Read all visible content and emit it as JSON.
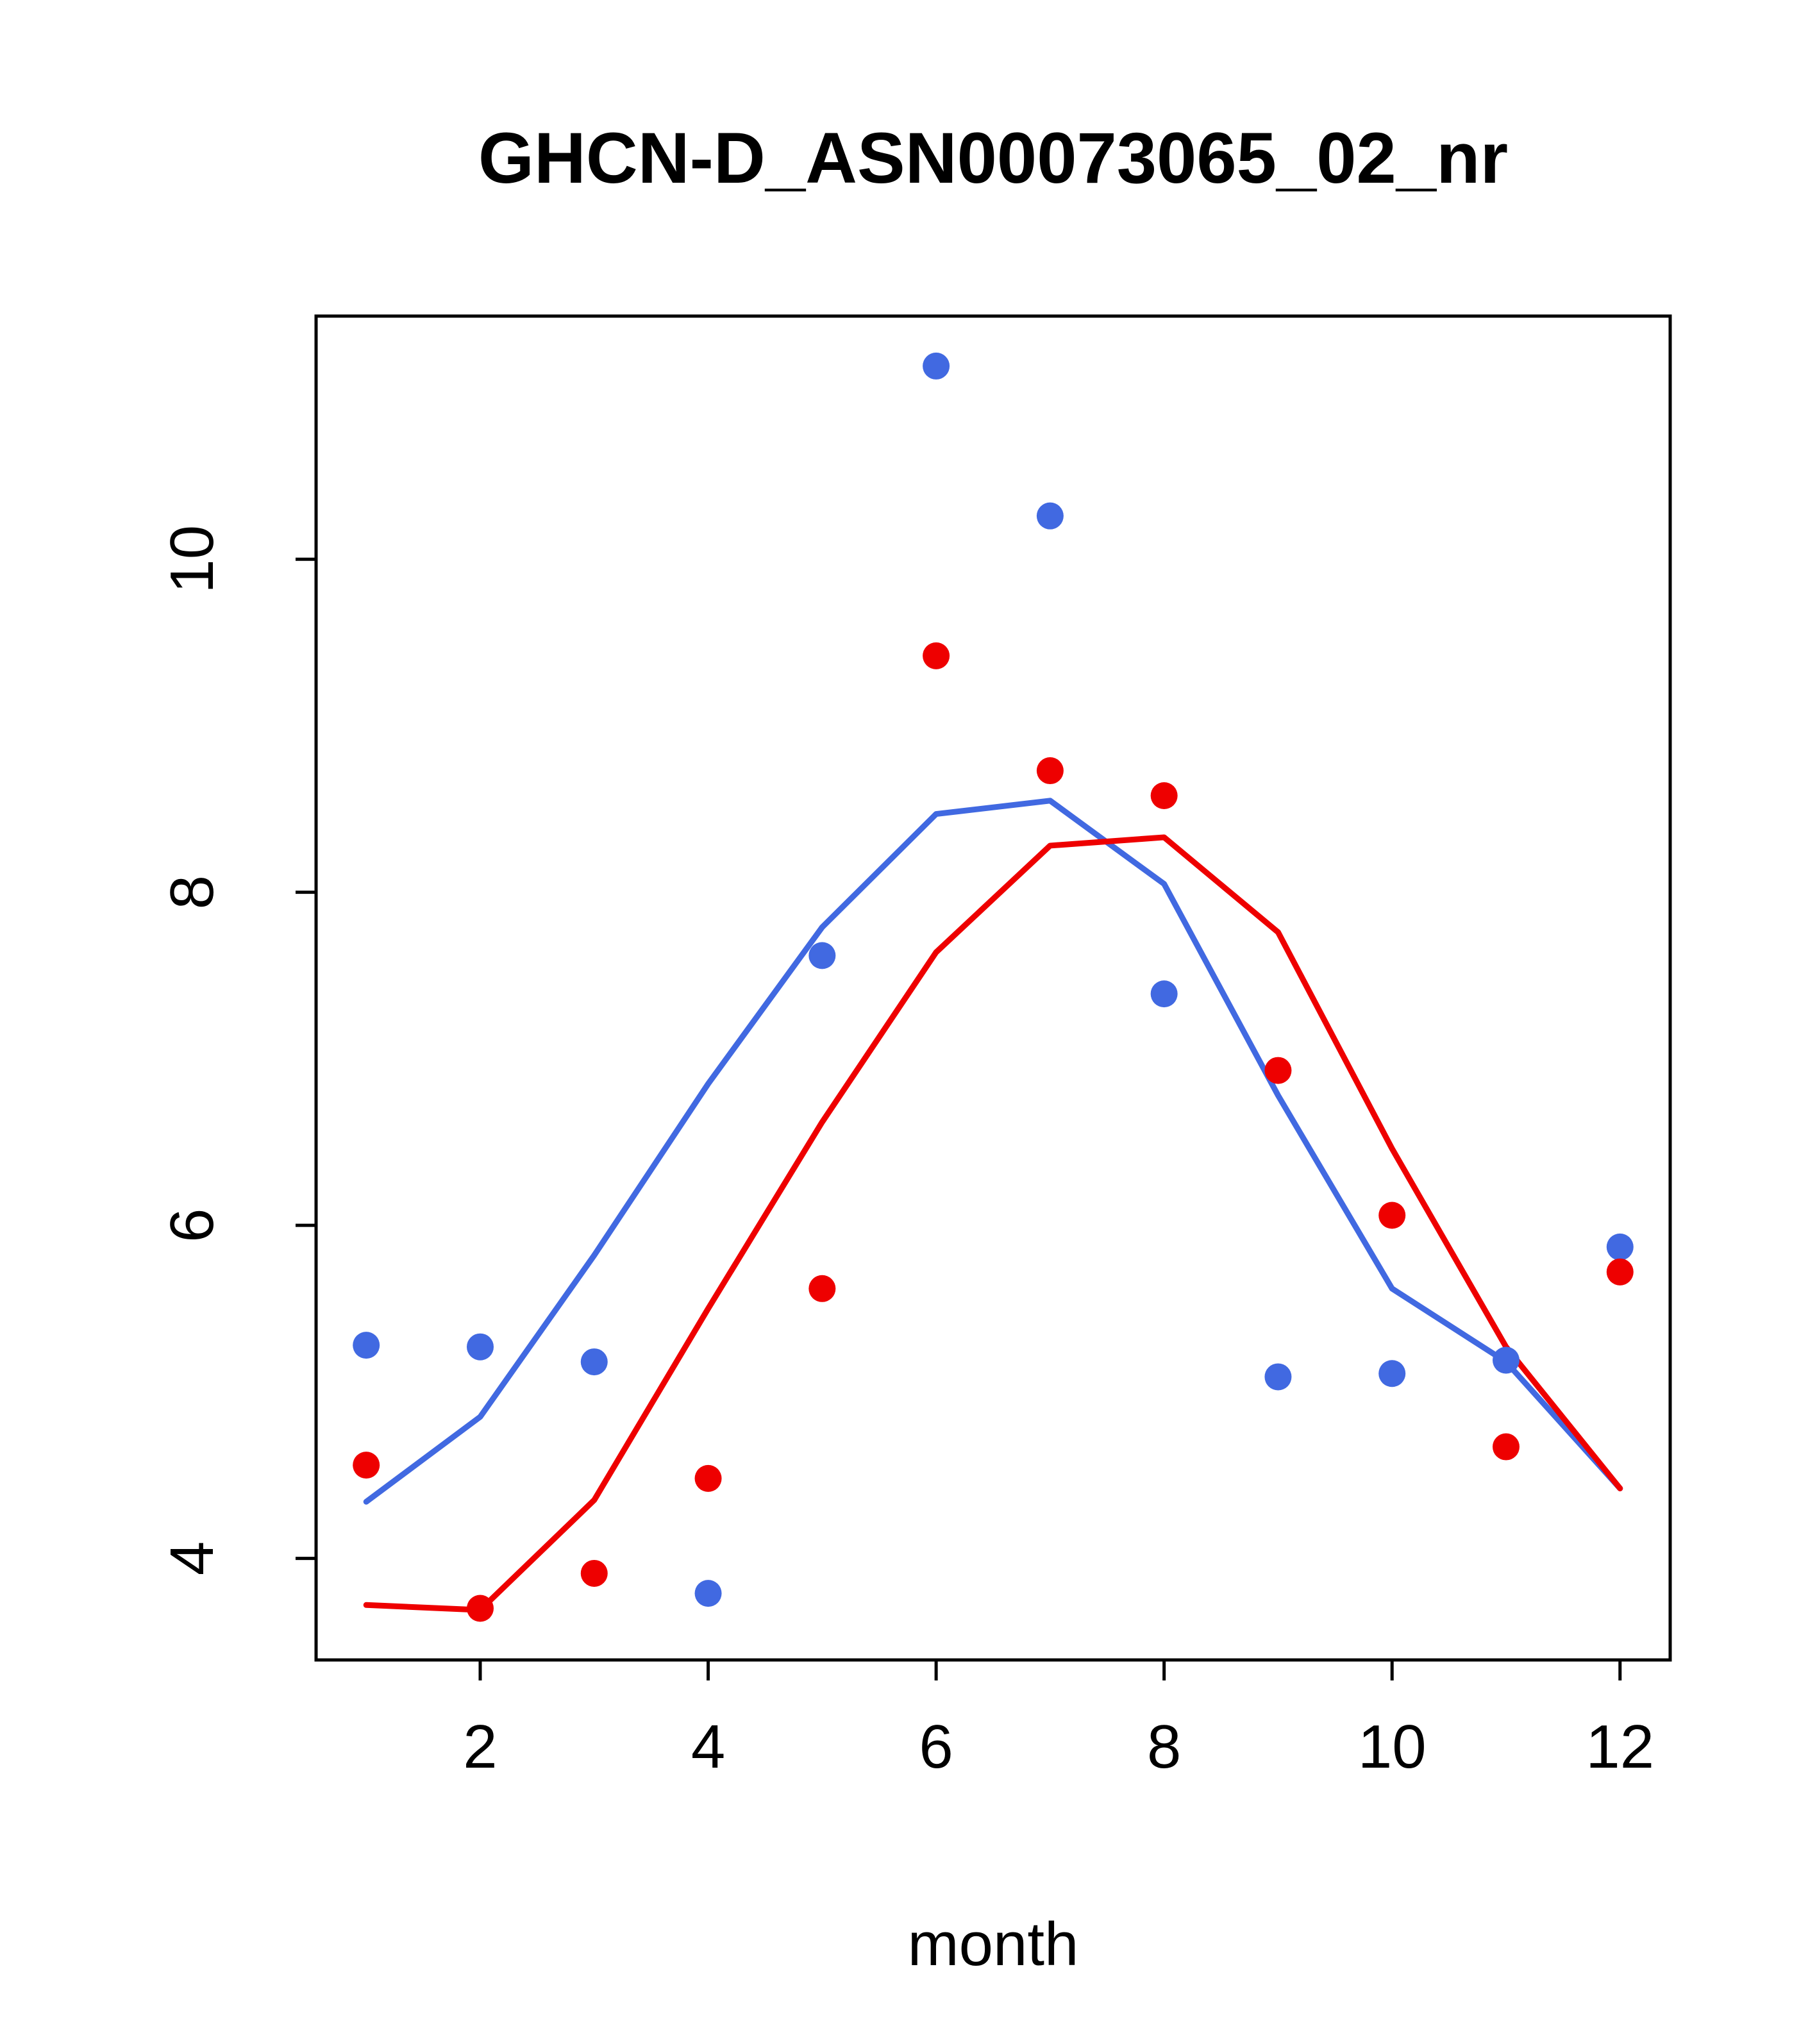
{
  "page": {
    "background": "#ffffff"
  },
  "chart_data": {
    "type": "scatter",
    "title": "GHCN-D_ASN00073065_02_nr",
    "xlabel": "month",
    "ylabel": "",
    "xlim": [
      0.56,
      12.44
    ],
    "ylim": [
      3.39,
      11.46
    ],
    "x_ticks": [
      2,
      4,
      6,
      8,
      10,
      12
    ],
    "y_ticks": [
      4,
      6,
      8,
      10
    ],
    "grid": false,
    "legend": "none",
    "x": [
      1,
      2,
      3,
      4,
      5,
      6,
      7,
      8,
      9,
      10,
      11,
      12
    ],
    "series": [
      {
        "name": "blue-line",
        "type": "line",
        "color": "#4169E1",
        "values": [
          4.34,
          4.85,
          5.82,
          6.85,
          7.79,
          8.47,
          8.55,
          8.05,
          6.78,
          5.62,
          5.18,
          4.42
        ]
      },
      {
        "name": "red-line",
        "type": "line",
        "color": "#EE0000",
        "values": [
          3.72,
          3.69,
          4.35,
          5.5,
          6.62,
          7.64,
          8.28,
          8.33,
          7.76,
          6.46,
          5.27,
          4.42
        ]
      },
      {
        "name": "blue-points",
        "type": "points",
        "color": "#4169E1",
        "values": [
          5.28,
          5.27,
          5.18,
          3.79,
          7.62,
          11.16,
          10.26,
          7.39,
          5.09,
          5.11,
          5.19,
          5.87
        ]
      },
      {
        "name": "red-points",
        "type": "points",
        "color": "#EE0000",
        "values": [
          4.56,
          3.7,
          3.91,
          4.48,
          5.62,
          9.42,
          8.73,
          8.58,
          6.93,
          6.06,
          4.67,
          5.72
        ]
      }
    ]
  }
}
